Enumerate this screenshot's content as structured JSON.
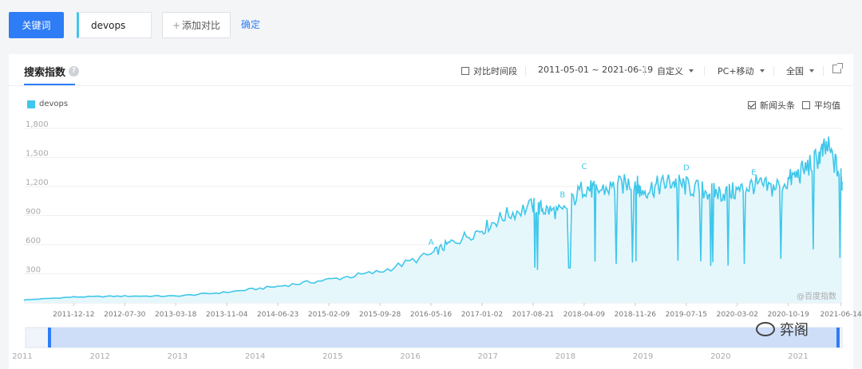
{
  "toolbar": {
    "keyword_label": "关键词",
    "keyword_value": "devops",
    "add_compare_label": "添加对比",
    "confirm_label": "确定"
  },
  "panel": {
    "title": "搜索指数",
    "help": "?",
    "compare_period_label": "对比时间段",
    "date_range": "2011-05-01 ~ 2021-06-19",
    "custom_label": "自定义",
    "device_label": "PC+移动",
    "region_label": "全国",
    "news_label": "新闻头条",
    "news_checked": true,
    "avg_label": "平均值",
    "avg_checked": false,
    "credit": "@百度指数"
  },
  "watermark": "弈阁",
  "colors": {
    "accent": "#2e7cf6",
    "series": "#3fc7ea",
    "fill": "#e6f7fc",
    "range": "#c8d9f7"
  },
  "chart_data": {
    "type": "line",
    "series": [
      {
        "name": "devops",
        "x": [
          "2011-05-01",
          "2011-12-12",
          "2012-07-30",
          "2013-03-18",
          "2013-11-04",
          "2014-06-23",
          "2015-02-09",
          "2015-09-28",
          "2016-05-16",
          "2016-08-15",
          "2017-01-02",
          "2017-04-15",
          "2017-08-21",
          "2017-10-15",
          "2018-01-01",
          "2018-04-09",
          "2018-06-01",
          "2018-09-01",
          "2018-11-26",
          "2018-12-20",
          "2019-03-01",
          "2019-05-10",
          "2019-07-15",
          "2019-10-15",
          "2019-12-20",
          "2020-03-02",
          "2020-05-15",
          "2020-08-01",
          "2020-10-19",
          "2020-12-20",
          "2021-03-01",
          "2021-04-15",
          "2021-06-14",
          "2021-06-19"
        ],
        "values": [
          30,
          60,
          70,
          70,
          110,
          170,
          240,
          320,
          500,
          620,
          760,
          900,
          1000,
          960,
          930,
          1200,
          1150,
          1200,
          1250,
          1150,
          1200,
          1250,
          1200,
          1150,
          1130,
          1150,
          1220,
          1180,
          1260,
          1350,
          1500,
          1600,
          1300,
          1250
        ]
      }
    ],
    "ylim": [
      0,
      1800
    ],
    "yticks": [
      "1,800",
      "1,500",
      "1,200",
      "900",
      "600",
      "300"
    ],
    "xticks": [
      "2011-12-12",
      "2012-07-30",
      "2013-03-18",
      "2013-11-04",
      "2014-06-23",
      "2015-02-09",
      "2015-09-28",
      "2016-05-16",
      "2017-01-02",
      "2017-08-21",
      "2018-04-09",
      "2018-11-26",
      "2019-07-15",
      "2020-03-02",
      "2020-10-19",
      "2021-06-14"
    ],
    "annotations": [
      {
        "label": "A",
        "x": "2016-05-16",
        "y": 600
      },
      {
        "label": "B",
        "x": "2018-01-01",
        "y": 1090
      },
      {
        "label": "C",
        "x": "2018-04-09",
        "y": 1380
      },
      {
        "label": "D",
        "x": "2019-07-15",
        "y": 1370
      },
      {
        "label": "E",
        "x": "2020-05-15",
        "y": 1320
      }
    ],
    "range_years": [
      "2011",
      "2012",
      "2013",
      "2014",
      "2015",
      "2016",
      "2017",
      "2018",
      "2019",
      "2020",
      "2021"
    ],
    "grid": true
  }
}
